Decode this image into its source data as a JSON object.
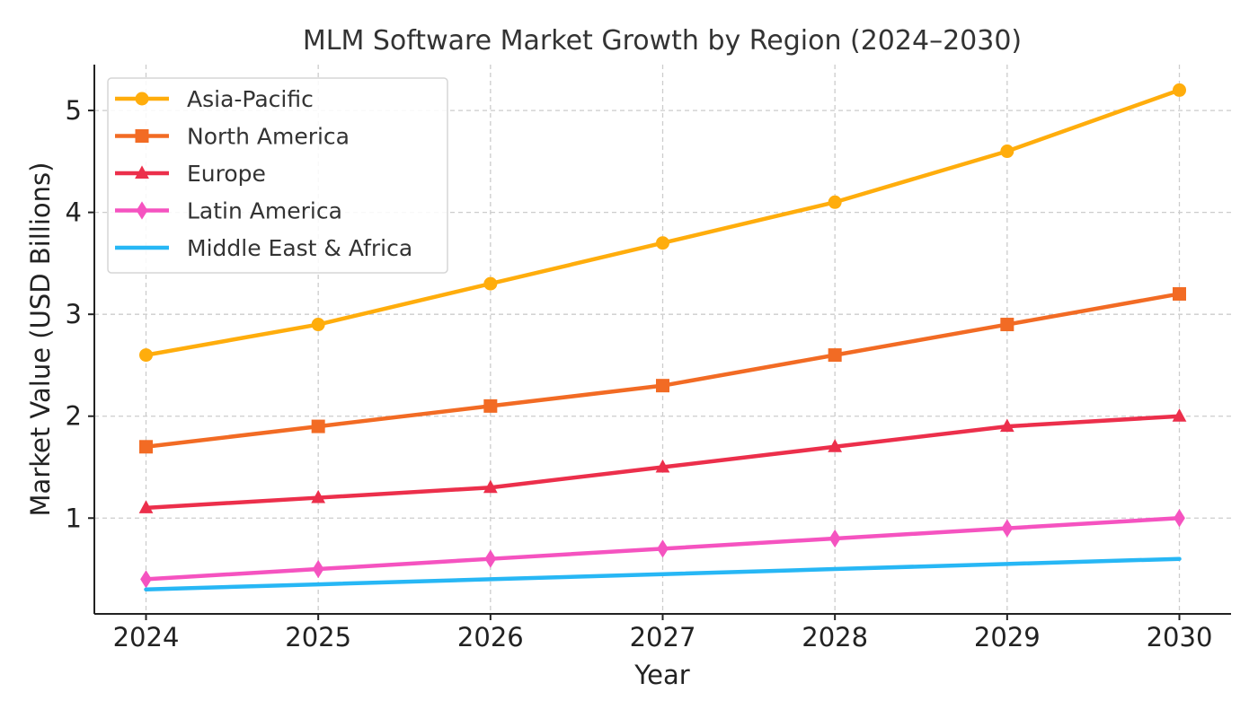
{
  "chart_data": {
    "type": "line",
    "title": "MLM Software Market Growth by Region (2024–2030)",
    "xlabel": "Year",
    "ylabel": "Market Value (USD Billions)",
    "x": [
      2024,
      2025,
      2026,
      2027,
      2028,
      2029,
      2030
    ],
    "x_tick_labels": [
      "2024",
      "2025",
      "2026",
      "2027",
      "2028",
      "2029",
      "2030"
    ],
    "y_ticks": [
      1,
      2,
      3,
      4,
      5
    ],
    "y_tick_labels": [
      "1",
      "2",
      "3",
      "4",
      "5"
    ],
    "xlim": [
      2023.7,
      2030.3
    ],
    "ylim": [
      0.06,
      5.45
    ],
    "grid": true,
    "legend_position": "top-left",
    "series": [
      {
        "name": "Asia-Pacific",
        "values": [
          2.6,
          2.9,
          3.3,
          3.7,
          4.1,
          4.6,
          5.2
        ],
        "color": "#ffad0c",
        "marker": "circle"
      },
      {
        "name": "North America",
        "values": [
          1.7,
          1.9,
          2.1,
          2.3,
          2.6,
          2.9,
          3.2
        ],
        "color": "#f26b24",
        "marker": "square"
      },
      {
        "name": "Europe",
        "values": [
          1.1,
          1.2,
          1.3,
          1.5,
          1.7,
          1.9,
          2.0
        ],
        "color": "#ec2f4b",
        "marker": "triangle"
      },
      {
        "name": "Latin America",
        "values": [
          0.4,
          0.5,
          0.6,
          0.7,
          0.8,
          0.9,
          1.0
        ],
        "color": "#f553c0",
        "marker": "diamond"
      },
      {
        "name": "Middle East & Africa",
        "values": [
          0.3,
          0.35,
          0.4,
          0.45,
          0.5,
          0.55,
          0.6
        ],
        "color": "#27b7f5",
        "marker": "none"
      }
    ]
  }
}
